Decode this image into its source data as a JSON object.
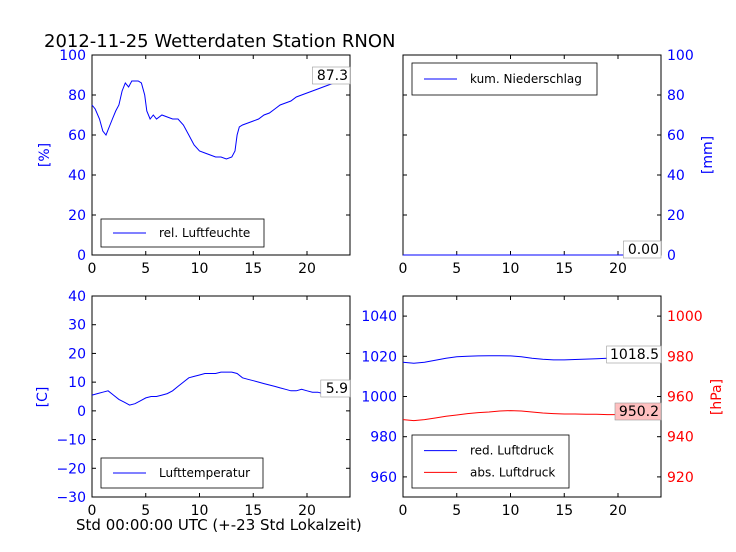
{
  "figure_title": "2012-11-25 Wetterdaten Station RNON",
  "x_caption": "Std 00:00:00 UTC (+-23 Std Lokalzeit)",
  "colors": {
    "blue": "#0000ff",
    "red": "#ff0000",
    "axis": "#000000",
    "label_bg": "#ffc0c0"
  },
  "chart_data": [
    {
      "type": "line",
      "ylabel": "[%]",
      "xlim": [
        0,
        24
      ],
      "ylim": [
        0,
        100
      ],
      "xticks": [
        0,
        5,
        10,
        15,
        20
      ],
      "yticks": [
        0,
        20,
        40,
        60,
        80,
        100
      ],
      "legend": {
        "placement": "lower-left"
      },
      "series": [
        {
          "name": "rel. Luftfeuchte",
          "color": "#0000ff",
          "x": [
            0,
            0.3,
            0.7,
            1.0,
            1.3,
            1.6,
            1.9,
            2.2,
            2.5,
            2.8,
            3.1,
            3.4,
            3.7,
            4.0,
            4.3,
            4.6,
            4.9,
            5.1,
            5.4,
            5.7,
            6.0,
            6.5,
            7.0,
            7.5,
            8.0,
            8.5,
            9.0,
            9.5,
            10.0,
            10.5,
            11.0,
            11.5,
            12.0,
            12.5,
            13.0,
            13.3,
            13.5,
            13.7,
            14.0,
            14.5,
            15.0,
            15.5,
            16.0,
            16.5,
            17.0,
            17.5,
            18.0,
            18.5,
            19.0,
            19.5,
            20.0,
            20.5,
            21.0,
            21.5,
            22.0,
            22.5,
            23.0,
            23.5,
            24.0
          ],
          "y": [
            75,
            73,
            68,
            62,
            60,
            64,
            68,
            72,
            75,
            82,
            86,
            84,
            87,
            87,
            87,
            86,
            80,
            72,
            68,
            70,
            68,
            70,
            69,
            68,
            68,
            65,
            60,
            55,
            52,
            51,
            50,
            49,
            49,
            48,
            49,
            52,
            60,
            64,
            65,
            66,
            67,
            68,
            70,
            71,
            73,
            75,
            76,
            77,
            79,
            80,
            81,
            82,
            83,
            84,
            85,
            86,
            86,
            87,
            87.3
          ]
        },
        {
          "name": "",
          "color": "#0000ff",
          "x": [],
          "y": []
        }
      ],
      "annotations": [
        "87.3"
      ]
    },
    {
      "type": "line",
      "ylabel": "[mm]",
      "xlim": [
        0,
        24
      ],
      "ylim": [
        0,
        100
      ],
      "xticks": [
        0,
        5,
        10,
        15,
        20
      ],
      "yticks": [
        0,
        20,
        40,
        60,
        80,
        100
      ],
      "legend": {
        "placement": "upper-left"
      },
      "series": [
        {
          "name": "kum. Niederschlag",
          "color": "#0000ff",
          "x": [
            0,
            24
          ],
          "y": [
            0,
            0
          ]
        }
      ],
      "annotations": [
        "0.00"
      ]
    },
    {
      "type": "line",
      "ylabel": "[C]",
      "xlim": [
        0,
        24
      ],
      "ylim": [
        -30,
        40
      ],
      "xticks": [
        0,
        5,
        10,
        15,
        20
      ],
      "yticks": [
        -30,
        -20,
        -10,
        0,
        10,
        20,
        30,
        40
      ],
      "legend": {
        "placement": "lower-left"
      },
      "series": [
        {
          "name": "Lufttemperatur",
          "color": "#0000ff",
          "x": [
            0,
            0.5,
            1.0,
            1.5,
            2.0,
            2.5,
            3.0,
            3.5,
            4.0,
            4.5,
            5.0,
            5.5,
            6.0,
            6.5,
            7.0,
            7.5,
            8.0,
            8.5,
            9.0,
            9.5,
            10.0,
            10.5,
            11.0,
            11.5,
            12.0,
            12.5,
            13.0,
            13.5,
            14.0,
            14.5,
            15.0,
            15.5,
            16.0,
            16.5,
            17.0,
            17.5,
            18.0,
            18.5,
            19.0,
            19.5,
            20.0,
            20.5,
            21.0,
            21.5,
            22.0,
            22.5,
            23.0,
            23.5,
            24.0
          ],
          "y": [
            5.5,
            6,
            6.5,
            7,
            5.5,
            4,
            3,
            2,
            2.5,
            3.5,
            4.5,
            5,
            5,
            5.5,
            6,
            7,
            8.5,
            10,
            11.5,
            12,
            12.5,
            13,
            13,
            13,
            13.5,
            13.5,
            13.5,
            13,
            11.5,
            11,
            10.5,
            10,
            9.5,
            9,
            8.5,
            8,
            7.5,
            7,
            7,
            7.5,
            7,
            6.5,
            6.5,
            6,
            6,
            6,
            6,
            6,
            5.9
          ]
        }
      ],
      "annotations": [
        "5.9"
      ]
    },
    {
      "type": "line",
      "ylabel_left": "",
      "ylabel_right": "[hPa]",
      "xlim": [
        0,
        24
      ],
      "ylim_left": [
        950,
        1050
      ],
      "ylim_right": [
        910,
        1010
      ],
      "xticks": [
        0,
        5,
        10,
        15,
        20
      ],
      "yticks_left": [
        960,
        980,
        1000,
        1020,
        1040
      ],
      "yticks_right": [
        920,
        940,
        960,
        980,
        1000
      ],
      "legend": {
        "placement": "lower-left"
      },
      "series": [
        {
          "name": "red. Luftdruck",
          "color": "#0000ff",
          "axis": "left",
          "x": [
            0,
            1,
            2,
            3,
            4,
            5,
            6,
            7,
            8,
            9,
            10,
            11,
            12,
            13,
            14,
            15,
            16,
            17,
            18,
            19,
            20,
            21,
            22,
            23,
            24
          ],
          "y": [
            1017,
            1016.5,
            1017,
            1018,
            1019,
            1019.8,
            1020,
            1020.2,
            1020.3,
            1020.3,
            1020.2,
            1019.8,
            1019,
            1018.5,
            1018.2,
            1018.2,
            1018.4,
            1018.6,
            1018.8,
            1019,
            1019,
            1018.8,
            1018.7,
            1018.6,
            1018.5
          ]
        },
        {
          "name": "abs. Luftdruck",
          "color": "#ff0000",
          "axis": "right",
          "x": [
            0,
            1,
            2,
            3,
            4,
            5,
            6,
            7,
            8,
            9,
            10,
            11,
            12,
            13,
            14,
            15,
            16,
            17,
            18,
            19,
            20,
            21,
            22,
            23,
            24
          ],
          "y": [
            948.5,
            948,
            948.5,
            949.3,
            950.2,
            950.8,
            951.5,
            952,
            952.3,
            952.8,
            953,
            952.8,
            952.3,
            951.8,
            951.5,
            951.3,
            951.3,
            951.2,
            951.2,
            951,
            951,
            950.8,
            950.6,
            950.4,
            950.2
          ]
        }
      ],
      "annotations": [
        "1018.5",
        "950.2"
      ]
    }
  ]
}
